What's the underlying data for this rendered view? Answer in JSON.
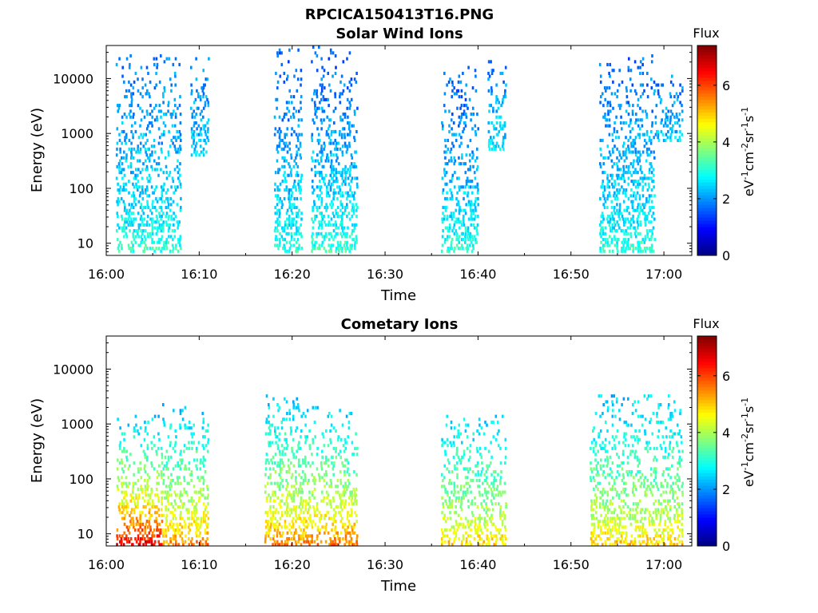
{
  "figure_title": "RPCICA150413T16.PNG",
  "colorbar": {
    "title": "Flux",
    "label_parts": [
      "eV",
      "-1",
      "cm",
      "-2",
      "sr",
      "-1",
      "s",
      "-1"
    ],
    "ticks": [
      "0",
      "2",
      "4",
      "6"
    ],
    "range": [
      0,
      7.4
    ],
    "colormap": "jet"
  },
  "chart_data": [
    {
      "type": "heatmap",
      "title": "Solar Wind Ions",
      "xlabel": "Time",
      "ylabel": "Energy (eV)",
      "x_range": [
        "16:00",
        "17:03"
      ],
      "y_scale": "log",
      "ylim": [
        6,
        40000
      ],
      "xticks": [
        "16:00",
        "16:10",
        "16:20",
        "16:30",
        "16:40",
        "16:50",
        "17:00"
      ],
      "yticks": [
        "10",
        "100",
        "1000",
        "10000"
      ],
      "bursts": [
        {
          "start": "16:01",
          "end": "16:08",
          "emin": 7,
          "emax": 28000,
          "flux_low_energy": 3.2,
          "flux_high_energy": 1.8
        },
        {
          "start": "16:09",
          "end": "16:11",
          "emin": 400,
          "emax": 25000,
          "flux_low_energy": 2.6,
          "flux_high_energy": 1.8
        },
        {
          "start": "16:18",
          "end": "16:21",
          "emin": 7,
          "emax": 35000,
          "flux_low_energy": 3.2,
          "flux_high_energy": 1.6
        },
        {
          "start": "16:22",
          "end": "16:27",
          "emin": 7,
          "emax": 38000,
          "flux_low_energy": 3.3,
          "flux_high_energy": 1.6
        },
        {
          "start": "16:36",
          "end": "16:40",
          "emin": 7,
          "emax": 18000,
          "flux_low_energy": 3.2,
          "flux_high_energy": 1.6
        },
        {
          "start": "16:41",
          "end": "16:43",
          "emin": 500,
          "emax": 22000,
          "flux_low_energy": 2.8,
          "flux_high_energy": 1.8
        },
        {
          "start": "16:53",
          "end": "16:59",
          "emin": 7,
          "emax": 28000,
          "flux_low_energy": 3.2,
          "flux_high_energy": 1.7
        },
        {
          "start": "16:59",
          "end": "17:02",
          "emin": 700,
          "emax": 12000,
          "flux_low_energy": 2.5,
          "flux_high_energy": 1.8
        }
      ]
    },
    {
      "type": "heatmap",
      "title": "Cometary Ions",
      "xlabel": "Time",
      "ylabel": "Energy (eV)",
      "x_range": [
        "16:00",
        "17:03"
      ],
      "y_scale": "log",
      "ylim": [
        6,
        40000
      ],
      "xticks": [
        "16:00",
        "16:10",
        "16:20",
        "16:30",
        "16:40",
        "16:50",
        "17:00"
      ],
      "yticks": [
        "10",
        "100",
        "1000",
        "10000"
      ],
      "bursts": [
        {
          "start": "16:01",
          "end": "16:06",
          "emin": 6,
          "emax": 1500,
          "flux_low_energy": 7.0,
          "flux_high_energy": 2.4
        },
        {
          "start": "16:06",
          "end": "16:11",
          "emin": 6,
          "emax": 2500,
          "flux_low_energy": 5.8,
          "flux_high_energy": 2.4
        },
        {
          "start": "16:17",
          "end": "16:21",
          "emin": 6,
          "emax": 3500,
          "flux_low_energy": 5.8,
          "flux_high_energy": 2.4
        },
        {
          "start": "16:21",
          "end": "16:27",
          "emin": 6,
          "emax": 2200,
          "flux_low_energy": 6.0,
          "flux_high_energy": 2.4
        },
        {
          "start": "16:36",
          "end": "16:43",
          "emin": 6,
          "emax": 1500,
          "flux_low_energy": 5.2,
          "flux_high_energy": 2.5
        },
        {
          "start": "16:52",
          "end": "17:02",
          "emin": 6,
          "emax": 3500,
          "flux_low_energy": 5.2,
          "flux_high_energy": 2.4
        }
      ]
    }
  ]
}
